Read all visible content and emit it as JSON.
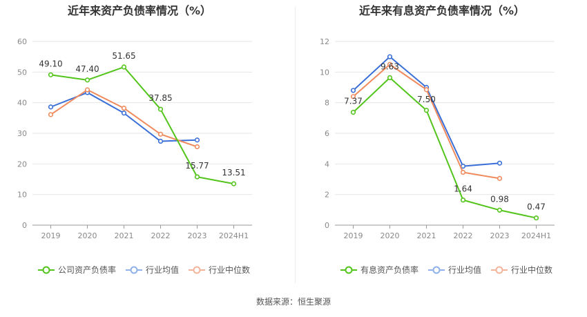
{
  "source_text": "数据来源：恒生聚源",
  "colors": {
    "company": "#52c41a",
    "industry_avg": "#3a6fd8",
    "industry_median": "#f08a5d"
  },
  "chart_data": [
    {
      "type": "line",
      "title": "近年来资产负债率情况（%）",
      "categories": [
        "2019",
        "2020",
        "2021",
        "2022",
        "2023",
        "2024H1"
      ],
      "ylim": [
        0,
        60
      ],
      "yticks": [
        0,
        10,
        20,
        30,
        40,
        50,
        60
      ],
      "grid": true,
      "legend_position": "bottom",
      "series": [
        {
          "name": "公司资产负债率",
          "color": "#52c41a",
          "values": [
            49.1,
            47.4,
            51.65,
            37.85,
            15.77,
            13.51
          ],
          "labels": [
            "49.10",
            "47.40",
            "51.65",
            "37.85",
            "15.77",
            "13.51"
          ]
        },
        {
          "name": "行业均值",
          "color": "#3a6fd8",
          "values": [
            38.6,
            43.3,
            36.6,
            27.4,
            27.8,
            null
          ]
        },
        {
          "name": "行业中位数",
          "color": "#f08a5d",
          "values": [
            36.1,
            44.2,
            38.2,
            29.7,
            25.6,
            null
          ]
        }
      ]
    },
    {
      "type": "line",
      "title": "近年来有息资产负债率情况（%）",
      "categories": [
        "2019",
        "2020",
        "2021",
        "2022",
        "2023",
        "2024H1"
      ],
      "ylim": [
        0,
        12
      ],
      "yticks": [
        0,
        2,
        4,
        6,
        8,
        10,
        12
      ],
      "grid": true,
      "legend_position": "bottom",
      "series": [
        {
          "name": "有息资产负债率",
          "color": "#52c41a",
          "values": [
            7.37,
            9.63,
            7.5,
            1.64,
            0.98,
            0.47
          ],
          "labels": [
            "7.37",
            "9.63",
            "7.50",
            "1.64",
            "0.98",
            "0.47"
          ]
        },
        {
          "name": "行业均值",
          "color": "#3a6fd8",
          "values": [
            8.8,
            11.0,
            9.0,
            3.85,
            4.05,
            null
          ]
        },
        {
          "name": "行业中位数",
          "color": "#f08a5d",
          "values": [
            8.4,
            10.5,
            8.85,
            3.45,
            3.05,
            null
          ]
        }
      ]
    }
  ]
}
